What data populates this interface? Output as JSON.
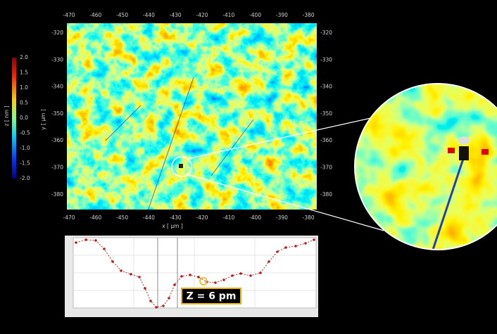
{
  "heatmap": {
    "x_axis_title": "x [ µm ]",
    "y_axis_title": "y [ µm ]",
    "x_ticks": [
      "-470",
      "-460",
      "-450",
      "-440",
      "-430",
      "-420",
      "-410",
      "-400",
      "-390",
      "-380"
    ],
    "y_ticks": [
      "-320",
      "-330",
      "-340",
      "-350",
      "-360",
      "-370",
      "-380"
    ]
  },
  "colorbar": {
    "title": "z [ nm ]",
    "ticks": [
      "2.0",
      "1.5",
      "1.0",
      "0.5",
      "0.0",
      "-0.5",
      "-1.0",
      "-1.5",
      "-2.0"
    ]
  },
  "profile": {
    "annotation": "Z = 6 pm"
  }
}
